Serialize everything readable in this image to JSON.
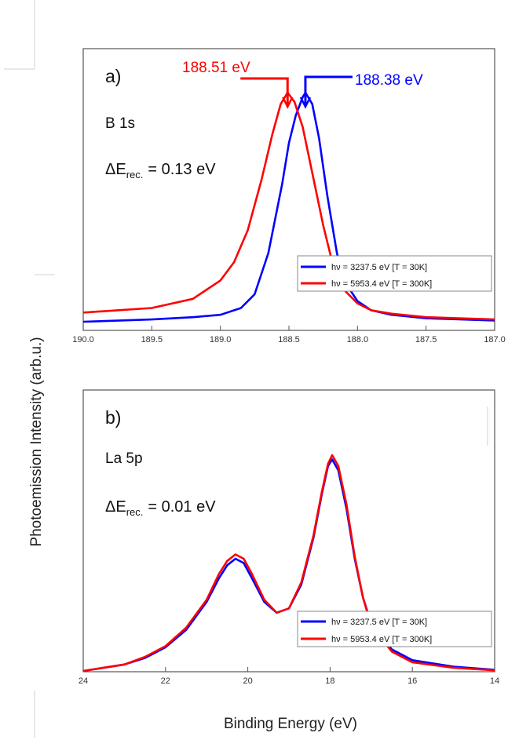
{
  "ylabel": "Photoemission Intensity  (arb.u.)",
  "chart_data": [
    {
      "type": "line",
      "panel_label": "a)",
      "element_label": "B 1s",
      "recoil": {
        "prefix": "ΔE",
        "sub": "rec.",
        "value": "= 0.13 eV"
      },
      "xlabel": "",
      "xlim": [
        190.0,
        187.0
      ],
      "xticks": [
        "190.0",
        "189.5",
        "189.0",
        "188.5",
        "188.0",
        "187.5",
        "187.0"
      ],
      "ylim": [
        0,
        1.05
      ],
      "annotations": [
        {
          "text": "188.51 eV",
          "x": 188.51,
          "color": "#ff0000",
          "side": "left"
        },
        {
          "text": "188.38 eV",
          "x": 188.38,
          "color": "#0000ff",
          "side": "right"
        }
      ],
      "legend": {
        "position": "right",
        "entries": [
          "hν = 3237.5 eV [T = 30K]",
          "hν = 5953.4 eV [T = 300K]"
        ]
      },
      "series": [
        {
          "name": "hν = 3237.5 eV [T = 30K]",
          "color": "#0000ff",
          "x": [
            190.0,
            189.5,
            189.2,
            189.0,
            188.85,
            188.75,
            188.65,
            188.55,
            188.5,
            188.45,
            188.4,
            188.38,
            188.33,
            188.28,
            188.22,
            188.15,
            188.1,
            188.0,
            187.9,
            187.75,
            187.5,
            187.0
          ],
          "y": [
            0.0,
            0.01,
            0.02,
            0.03,
            0.06,
            0.12,
            0.3,
            0.6,
            0.78,
            0.9,
            0.98,
            1.0,
            0.95,
            0.8,
            0.55,
            0.3,
            0.18,
            0.09,
            0.05,
            0.03,
            0.015,
            0.005
          ]
        },
        {
          "name": "hν = 5953.4 eV [T = 300K]",
          "color": "#ff0000",
          "x": [
            190.0,
            189.5,
            189.2,
            189.0,
            188.9,
            188.8,
            188.7,
            188.62,
            188.56,
            188.51,
            188.46,
            188.4,
            188.33,
            188.25,
            188.18,
            188.1,
            188.0,
            187.9,
            187.75,
            187.5,
            187.0
          ],
          "y": [
            0.04,
            0.06,
            0.1,
            0.18,
            0.26,
            0.4,
            0.62,
            0.82,
            0.95,
            1.0,
            0.96,
            0.85,
            0.65,
            0.42,
            0.25,
            0.14,
            0.08,
            0.05,
            0.035,
            0.02,
            0.01
          ]
        }
      ]
    },
    {
      "type": "line",
      "panel_label": "b)",
      "element_label": "La 5p",
      "recoil": {
        "prefix": "ΔE",
        "sub": "rec.",
        "value": "= 0.01 eV"
      },
      "xlabel": "Binding Energy (eV)",
      "xlim": [
        24,
        14
      ],
      "xticks": [
        "24",
        "22",
        "20",
        "18",
        "16",
        "14"
      ],
      "ylim": [
        0,
        1.05
      ],
      "legend": {
        "position": "right",
        "entries": [
          "hν = 3237.5 eV [T = 30K]",
          "hν = 5953.4 eV [T = 300K]"
        ]
      },
      "series": [
        {
          "name": "hν = 3237.5 eV [T = 30K]",
          "color": "#0000ff",
          "x": [
            24,
            23,
            22.5,
            22,
            21.5,
            21,
            20.7,
            20.5,
            20.3,
            20.1,
            19.9,
            19.6,
            19.3,
            19.0,
            18.7,
            18.4,
            18.2,
            18.05,
            17.95,
            17.8,
            17.6,
            17.4,
            17.2,
            17.0,
            16.5,
            16,
            15,
            14
          ],
          "y": [
            0.0,
            0.03,
            0.06,
            0.11,
            0.19,
            0.32,
            0.43,
            0.49,
            0.52,
            0.5,
            0.43,
            0.32,
            0.27,
            0.29,
            0.4,
            0.62,
            0.82,
            0.95,
            0.98,
            0.93,
            0.75,
            0.52,
            0.34,
            0.22,
            0.1,
            0.05,
            0.02,
            0.005
          ]
        },
        {
          "name": "hν = 5953.4 eV [T = 300K]",
          "color": "#ff0000",
          "x": [
            24,
            23,
            22.5,
            22,
            21.5,
            21,
            20.7,
            20.5,
            20.3,
            20.1,
            19.9,
            19.6,
            19.3,
            19.0,
            18.7,
            18.4,
            18.2,
            18.05,
            17.95,
            17.8,
            17.6,
            17.4,
            17.2,
            17.0,
            16.5,
            16,
            15,
            14
          ],
          "y": [
            0.0,
            0.03,
            0.065,
            0.115,
            0.2,
            0.33,
            0.45,
            0.51,
            0.54,
            0.52,
            0.45,
            0.33,
            0.27,
            0.29,
            0.41,
            0.63,
            0.83,
            0.96,
            1.0,
            0.95,
            0.77,
            0.53,
            0.34,
            0.21,
            0.09,
            0.04,
            0.015,
            0.003
          ]
        }
      ]
    }
  ]
}
